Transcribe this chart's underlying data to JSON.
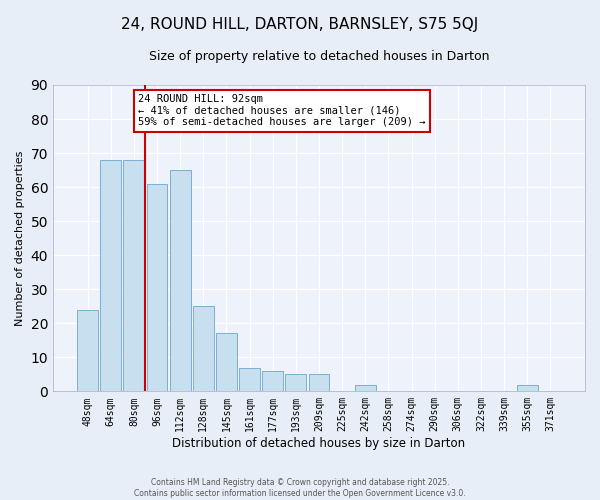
{
  "title": "24, ROUND HILL, DARTON, BARNSLEY, S75 5QJ",
  "subtitle": "Size of property relative to detached houses in Darton",
  "xlabel": "Distribution of detached houses by size in Darton",
  "ylabel": "Number of detached properties",
  "bar_color": "#c8dff0",
  "bar_edge_color": "#7ab0d4",
  "categories": [
    "48sqm",
    "64sqm",
    "80sqm",
    "96sqm",
    "112sqm",
    "128sqm",
    "145sqm",
    "161sqm",
    "177sqm",
    "193sqm",
    "209sqm",
    "225sqm",
    "242sqm",
    "258sqm",
    "274sqm",
    "290sqm",
    "306sqm",
    "322sqm",
    "339sqm",
    "355sqm",
    "371sqm"
  ],
  "values": [
    24,
    68,
    68,
    61,
    65,
    25,
    17,
    7,
    6,
    5,
    5,
    0,
    2,
    0,
    0,
    0,
    0,
    0,
    0,
    2,
    0
  ],
  "ylim": [
    0,
    90
  ],
  "yticks": [
    0,
    10,
    20,
    30,
    40,
    50,
    60,
    70,
    80,
    90
  ],
  "property_line_x": 2.5,
  "property_line_color": "#cc0000",
  "annotation_title": "24 ROUND HILL: 92sqm",
  "annotation_line1": "← 41% of detached houses are smaller (146)",
  "annotation_line2": "59% of semi-detached houses are larger (209) →",
  "annotation_box_color": "#ffffff",
  "annotation_box_edge": "#cc0000",
  "footer1": "Contains HM Land Registry data © Crown copyright and database right 2025.",
  "footer2": "Contains public sector information licensed under the Open Government Licence v3.0.",
  "fig_background_color": "#e8eef8",
  "plot_background_color": "#eef2fa",
  "grid_color": "#ffffff",
  "title_fontsize": 11,
  "subtitle_fontsize": 9
}
